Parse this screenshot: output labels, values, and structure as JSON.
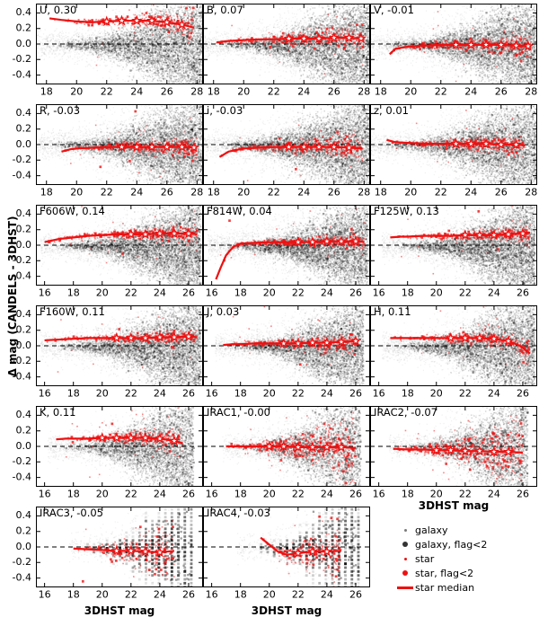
{
  "figure": {
    "ylabel": "Δ mag (CANDELS - 3DHST)",
    "xlabel": "3DHST mag",
    "yticks": [
      0.4,
      0.2,
      0.0,
      -0.2,
      -0.4
    ],
    "ytick_labels": [
      "0.4",
      "0.2",
      "0.0",
      "-0.2",
      "-0.4"
    ],
    "ylim": [
      -0.52,
      0.52
    ],
    "colors": {
      "star_red": "#ed1111",
      "galaxy_black": "#000000",
      "galaxy_grey": "#7a7a7a",
      "galaxy_dark": "#333333",
      "marker_fill": "#ffffff",
      "dashed_line": "#000000"
    }
  },
  "legend": {
    "entries": [
      {
        "label": "galaxy",
        "marker": "small-grey-dot"
      },
      {
        "label": "galaxy, flag<2",
        "marker": "large-dark-dot"
      },
      {
        "label": "star",
        "marker": "small-red-dot"
      },
      {
        "label": "star, flag<2",
        "marker": "large-red-dot"
      },
      {
        "label": "star median",
        "marker": "red-line"
      }
    ]
  },
  "chart_data": {
    "type": "scatter",
    "description": "Grid of 17 panels comparing CANDELS and 3DHST photometry per band. Each panel: Δ mag (CANDELS - 3DHST) vs 3DHST mag. Black/grey density = galaxies, red points = stars, thick red line with open star markers = running median of stars. Number after band name is the median offset. Dashed line marks Δ mag = 0.",
    "panels": [
      {
        "band": "U",
        "label": "U, 0.30",
        "median_offset": 0.3,
        "row": 0,
        "col": 0,
        "xlim": [
          17.3,
          28.4
        ],
        "xticks": [
          18,
          20,
          22,
          24,
          26,
          28
        ],
        "cloud": {
          "x0": 18,
          "x1": 28.3,
          "n": 4500,
          "s1": 0.45
        },
        "stars": {
          "n": 320,
          "s1": 0.1
        },
        "trend": {
          "x": [
            18.2,
            19,
            20,
            21,
            22,
            23,
            24,
            25,
            26,
            27,
            27.8
          ],
          "y": [
            0.33,
            0.31,
            0.29,
            0.28,
            0.29,
            0.3,
            0.3,
            0.3,
            0.28,
            0.25,
            0.21
          ]
        },
        "markers": [
          22,
          23,
          24,
          25,
          26,
          27
        ]
      },
      {
        "band": "B",
        "label": "B, 0.07",
        "median_offset": 0.07,
        "row": 0,
        "col": 1,
        "xlim": [
          17.3,
          28.4
        ],
        "xticks": [
          18,
          20,
          22,
          24,
          26,
          28
        ],
        "cloud": {
          "x0": 18,
          "x1": 28.3,
          "n": 4800,
          "s1": 0.45
        },
        "stars": {
          "n": 340,
          "s1": 0.1
        },
        "trend": {
          "x": [
            18.2,
            19,
            20,
            21,
            22,
            23,
            24,
            25,
            26,
            27,
            28
          ],
          "y": [
            0.02,
            0.04,
            0.05,
            0.06,
            0.06,
            0.07,
            0.07,
            0.07,
            0.08,
            0.08,
            0.07
          ]
        },
        "markers": [
          23,
          24,
          25,
          26,
          27,
          27.8
        ]
      },
      {
        "band": "V",
        "label": "V, -0.01",
        "median_offset": -0.01,
        "row": 0,
        "col": 2,
        "xlim": [
          17.3,
          28.4
        ],
        "xticks": [
          18,
          20,
          22,
          24,
          26,
          28
        ],
        "cloud": {
          "x0": 18,
          "x1": 28.3,
          "n": 4800,
          "s1": 0.45
        },
        "stars": {
          "n": 340,
          "s1": 0.09
        },
        "trend": {
          "x": [
            18.6,
            19,
            20,
            21,
            22,
            23,
            24,
            25,
            26,
            27,
            28
          ],
          "y": [
            -0.13,
            -0.06,
            -0.03,
            -0.02,
            -0.01,
            -0.01,
            -0.01,
            -0.01,
            -0.01,
            -0.02,
            -0.03
          ]
        },
        "markers": [
          23,
          24,
          25,
          26,
          27,
          27.8
        ]
      },
      {
        "band": "R",
        "label": "R, -0.03",
        "median_offset": -0.03,
        "row": 1,
        "col": 0,
        "xlim": [
          17.3,
          28.4
        ],
        "xticks": [
          18,
          20,
          22,
          24,
          26,
          28
        ],
        "cloud": {
          "x0": 18,
          "x1": 28.3,
          "n": 4800,
          "s1": 0.45
        },
        "stars": {
          "n": 360,
          "s1": 0.09
        },
        "trend": {
          "x": [
            19,
            19.6,
            20,
            21,
            22,
            23,
            24,
            25,
            26,
            27,
            28
          ],
          "y": [
            -0.09,
            -0.06,
            -0.05,
            -0.04,
            -0.03,
            -0.03,
            -0.03,
            -0.03,
            -0.03,
            -0.03,
            -0.04
          ]
        },
        "markers": [
          23,
          24,
          25,
          26,
          27,
          27.8
        ]
      },
      {
        "band": "i",
        "label": "i, -0.03",
        "median_offset": -0.03,
        "row": 1,
        "col": 1,
        "xlim": [
          17.3,
          28.4
        ],
        "xticks": [
          18,
          20,
          22,
          24,
          26,
          28
        ],
        "cloud": {
          "x0": 18,
          "x1": 28.3,
          "n": 4800,
          "s1": 0.45
        },
        "stars": {
          "n": 360,
          "s1": 0.09
        },
        "trend": {
          "x": [
            18.4,
            19,
            20,
            21,
            22,
            23,
            24,
            25,
            26,
            27,
            27.9
          ],
          "y": [
            -0.16,
            -0.09,
            -0.05,
            -0.04,
            -0.03,
            -0.03,
            -0.03,
            -0.03,
            -0.03,
            -0.04,
            -0.05
          ]
        },
        "markers": [
          23,
          24,
          25,
          26,
          27
        ]
      },
      {
        "band": "z",
        "label": "z, 0.01",
        "median_offset": 0.01,
        "row": 1,
        "col": 2,
        "xlim": [
          17.3,
          28.4
        ],
        "xticks": [
          18,
          20,
          22,
          24,
          26,
          28
        ],
        "cloud": {
          "x0": 18,
          "x1": 28.3,
          "n": 4500,
          "s1": 0.47
        },
        "stars": {
          "n": 360,
          "s1": 0.09
        },
        "trend": {
          "x": [
            18.4,
            19,
            20,
            21,
            22,
            23,
            24,
            25,
            26,
            27,
            27.6
          ],
          "y": [
            0.06,
            0.03,
            0.02,
            0.01,
            0.01,
            0.01,
            0.01,
            0.01,
            0.0,
            0.0,
            -0.01
          ]
        },
        "markers": [
          23,
          24,
          25,
          26,
          27
        ]
      },
      {
        "band": "F606W",
        "label": "F606W, 0.14",
        "median_offset": 0.14,
        "row": 2,
        "col": 0,
        "xlim": [
          15.4,
          27.0
        ],
        "xticks": [
          16,
          18,
          20,
          22,
          24,
          26
        ],
        "cloud": {
          "x0": 16.5,
          "x1": 26.8,
          "n": 5000,
          "s1": 0.42
        },
        "stars": {
          "n": 380,
          "s1": 0.06
        },
        "trend": {
          "x": [
            16,
            16.5,
            17,
            18,
            19,
            20,
            21,
            22,
            23,
            24,
            25,
            26,
            26.6
          ],
          "y": [
            0.04,
            0.06,
            0.08,
            0.1,
            0.12,
            0.13,
            0.14,
            0.14,
            0.14,
            0.15,
            0.15,
            0.15,
            0.14
          ]
        },
        "markers": [
          22,
          23,
          24,
          25,
          26
        ]
      },
      {
        "band": "F814W",
        "label": "F814W, 0.04",
        "median_offset": 0.04,
        "row": 2,
        "col": 1,
        "xlim": [
          15.4,
          27.0
        ],
        "xticks": [
          16,
          18,
          20,
          22,
          24,
          26
        ],
        "cloud": {
          "x0": 16.5,
          "x1": 26.8,
          "n": 5000,
          "s1": 0.42
        },
        "stars": {
          "n": 400,
          "s1": 0.05
        },
        "trend": {
          "x": [
            16.3,
            16.6,
            17,
            17.5,
            18,
            19,
            20,
            21,
            22,
            23,
            24,
            25,
            26,
            26.6
          ],
          "y": [
            -0.44,
            -0.3,
            -0.13,
            -0.02,
            0.02,
            0.03,
            0.04,
            0.04,
            0.04,
            0.04,
            0.05,
            0.05,
            0.05,
            0.04
          ]
        },
        "markers": [
          22,
          23,
          24,
          25,
          26
        ]
      },
      {
        "band": "F125W",
        "label": "F125W, 0.13",
        "median_offset": 0.13,
        "row": 2,
        "col": 2,
        "xlim": [
          15.4,
          27.0
        ],
        "xticks": [
          16,
          18,
          20,
          22,
          24,
          26
        ],
        "cloud": {
          "x0": 17,
          "x1": 26.8,
          "n": 4800,
          "s1": 0.45
        },
        "stars": {
          "n": 340,
          "s1": 0.06
        },
        "trend": {
          "x": [
            16.8,
            17.5,
            18,
            19,
            20,
            21,
            22,
            23,
            24,
            25,
            26,
            26.5
          ],
          "y": [
            0.1,
            0.11,
            0.11,
            0.12,
            0.12,
            0.12,
            0.13,
            0.13,
            0.13,
            0.14,
            0.15,
            0.16
          ]
        },
        "markers": [
          22,
          23,
          24,
          25,
          26
        ]
      },
      {
        "band": "F160W",
        "label": "F160W, 0.11",
        "median_offset": 0.11,
        "row": 3,
        "col": 0,
        "xlim": [
          15.4,
          27.0
        ],
        "xticks": [
          16,
          18,
          20,
          22,
          24,
          26
        ],
        "cloud": {
          "x0": 16.5,
          "x1": 26.8,
          "n": 4800,
          "s1": 0.45
        },
        "stars": {
          "n": 340,
          "s1": 0.05
        },
        "trend": {
          "x": [
            16,
            17,
            18,
            19,
            20,
            21,
            22,
            23,
            24,
            25,
            26,
            26.6
          ],
          "y": [
            0.07,
            0.08,
            0.09,
            0.1,
            0.1,
            0.1,
            0.1,
            0.1,
            0.11,
            0.11,
            0.12,
            0.11
          ]
        },
        "markers": [
          21,
          22,
          23,
          24,
          25,
          26
        ]
      },
      {
        "band": "J",
        "label": "J, 0.03",
        "median_offset": 0.03,
        "row": 3,
        "col": 1,
        "xlim": [
          15.4,
          27.0
        ],
        "xticks": [
          16,
          18,
          20,
          22,
          24,
          26
        ],
        "cloud": {
          "x0": 17,
          "x1": 26.5,
          "n": 4200,
          "s1": 0.45
        },
        "stars": {
          "n": 320,
          "s1": 0.07
        },
        "trend": {
          "x": [
            16.8,
            17.5,
            18,
            19,
            20,
            21,
            22,
            23,
            24,
            25,
            26
          ],
          "y": [
            0.01,
            0.02,
            0.02,
            0.03,
            0.03,
            0.03,
            0.03,
            0.04,
            0.04,
            0.05,
            0.06
          ]
        },
        "markers": [
          21,
          22,
          23,
          24,
          25,
          26
        ]
      },
      {
        "band": "H",
        "label": "H, 0.11",
        "median_offset": 0.11,
        "row": 3,
        "col": 2,
        "xlim": [
          15.4,
          27.0
        ],
        "xticks": [
          16,
          18,
          20,
          22,
          24,
          26
        ],
        "cloud": {
          "x0": 17,
          "x1": 26.8,
          "n": 4500,
          "s1": 0.5
        },
        "stars": {
          "n": 320,
          "s1": 0.07
        },
        "trend": {
          "x": [
            16.8,
            17.5,
            18,
            19,
            20,
            21,
            22,
            23,
            24,
            25,
            25.8,
            26.5
          ],
          "y": [
            0.1,
            0.1,
            0.1,
            0.1,
            0.1,
            0.1,
            0.1,
            0.1,
            0.09,
            0.06,
            0.0,
            -0.1
          ]
        },
        "markers": [
          21,
          22,
          23,
          24,
          25
        ]
      },
      {
        "band": "K",
        "label": "K, 0.11",
        "median_offset": 0.11,
        "row": 4,
        "col": 0,
        "xlim": [
          15.4,
          27.0
        ],
        "xticks": [
          16,
          18,
          20,
          22,
          24,
          26
        ],
        "cloud": {
          "x0": 17,
          "x1": 26.3,
          "n": 3800,
          "s1": 0.5
        },
        "stars": {
          "n": 300,
          "s1": 0.09
        },
        "trend": {
          "x": [
            16.8,
            17.5,
            18,
            19,
            20,
            21,
            22,
            23,
            24,
            25,
            25.6
          ],
          "y": [
            0.09,
            0.1,
            0.1,
            0.1,
            0.11,
            0.11,
            0.11,
            0.11,
            0.1,
            0.07,
            0.04
          ]
        },
        "markers": [
          20,
          21,
          22,
          23,
          24,
          25
        ]
      },
      {
        "band": "IRAC1",
        "label": "IRAC1, -0.00",
        "median_offset": -0.0,
        "row": 4,
        "col": 1,
        "xlim": [
          15.4,
          27.0
        ],
        "xticks": [
          16,
          18,
          20,
          22,
          24,
          26
        ],
        "cloud": {
          "x0": 17.5,
          "x1": 26.3,
          "n": 3000,
          "s1": 0.55
        },
        "stars": {
          "n": 520,
          "s1": 0.22
        },
        "trend": {
          "x": [
            17,
            18,
            19,
            20,
            21,
            22,
            23,
            24,
            25,
            26
          ],
          "y": [
            0.0,
            0.0,
            0.0,
            0.0,
            0.0,
            -0.01,
            -0.01,
            -0.01,
            -0.01,
            -0.02
          ]
        },
        "markers": [
          20,
          21,
          22,
          23,
          24,
          25
        ]
      },
      {
        "band": "IRAC2",
        "label": "IRAC2, -0.07",
        "median_offset": -0.07,
        "row": 4,
        "col": 2,
        "xlim": [
          15.4,
          27.0
        ],
        "xticks": [
          16,
          18,
          20,
          22,
          24,
          26
        ],
        "cloud": {
          "x0": 17.5,
          "x1": 26.3,
          "n": 3000,
          "s1": 0.55
        },
        "stars": {
          "n": 520,
          "s1": 0.22
        },
        "trend": {
          "x": [
            17,
            18,
            19,
            20,
            21,
            22,
            23,
            24,
            25,
            26
          ],
          "y": [
            -0.03,
            -0.04,
            -0.04,
            -0.05,
            -0.05,
            -0.06,
            -0.06,
            -0.07,
            -0.07,
            -0.08
          ]
        },
        "markers": [
          20,
          21,
          22,
          23,
          24,
          25
        ]
      },
      {
        "band": "IRAC3",
        "label": "IRAC3, -0.05",
        "median_offset": -0.05,
        "row": 5,
        "col": 0,
        "xlim": [
          15.4,
          27.0
        ],
        "xticks": [
          16,
          18,
          20,
          22,
          24,
          26
        ],
        "cloud": {
          "x0": 18.5,
          "x1": 26.2,
          "n": 1500,
          "s1": 0.5,
          "px": 2.8,
          "a": 0.1,
          "q": 0.45
        },
        "stars": {
          "n": 260,
          "s1": 0.22
        },
        "trend": {
          "x": [
            18,
            19,
            20,
            21,
            22,
            23,
            24,
            25
          ],
          "y": [
            -0.02,
            -0.03,
            -0.04,
            -0.05,
            -0.05,
            -0.06,
            -0.07,
            -0.05
          ]
        },
        "markers": [
          21,
          22,
          23,
          24
        ]
      },
      {
        "band": "IRAC4",
        "label": "IRAC4, -0.03",
        "median_offset": -0.03,
        "row": 5,
        "col": 1,
        "xlim": [
          15.4,
          27.0
        ],
        "xticks": [
          16,
          18,
          20,
          22,
          24,
          26
        ],
        "cloud": {
          "x0": 18.5,
          "x1": 26.2,
          "n": 1400,
          "s1": 0.5,
          "px": 2.8,
          "a": 0.1,
          "q": 0.45
        },
        "stars": {
          "n": 240,
          "s1": 0.22
        },
        "trend": {
          "x": [
            19.4,
            20,
            20.6,
            21.2,
            22,
            23,
            24,
            25
          ],
          "y": [
            0.12,
            0.03,
            -0.06,
            -0.1,
            -0.08,
            -0.06,
            -0.06,
            -0.05
          ]
        },
        "markers": [
          22,
          23,
          24
        ]
      }
    ]
  }
}
